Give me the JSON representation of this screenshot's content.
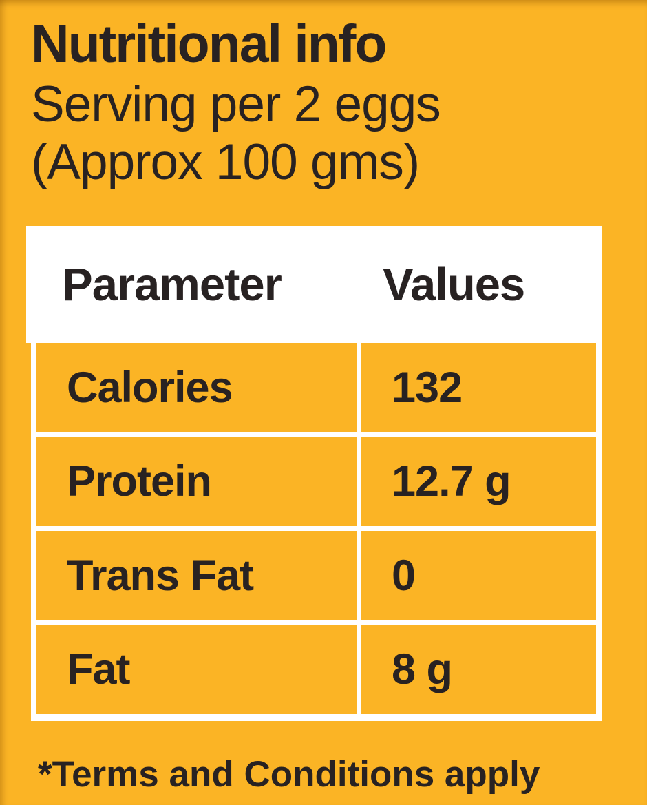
{
  "page": {
    "title": "Nutritional info",
    "subtitle_line1": "Serving per 2 eggs",
    "subtitle_line2": "(Approx 100 gms)",
    "footnote": "*Terms and Conditions apply",
    "colors": {
      "background": "#fbb425",
      "text": "#282222",
      "table_border": "#ffffff"
    }
  },
  "table": {
    "header": {
      "parameter": "Parameter",
      "values": "Values"
    },
    "rows": [
      {
        "parameter": "Calories",
        "value": "132"
      },
      {
        "parameter": "Protein",
        "value": "12.7 g"
      },
      {
        "parameter": "Trans Fat",
        "value": "0"
      },
      {
        "parameter": "Fat",
        "value": "8 g"
      }
    ]
  }
}
